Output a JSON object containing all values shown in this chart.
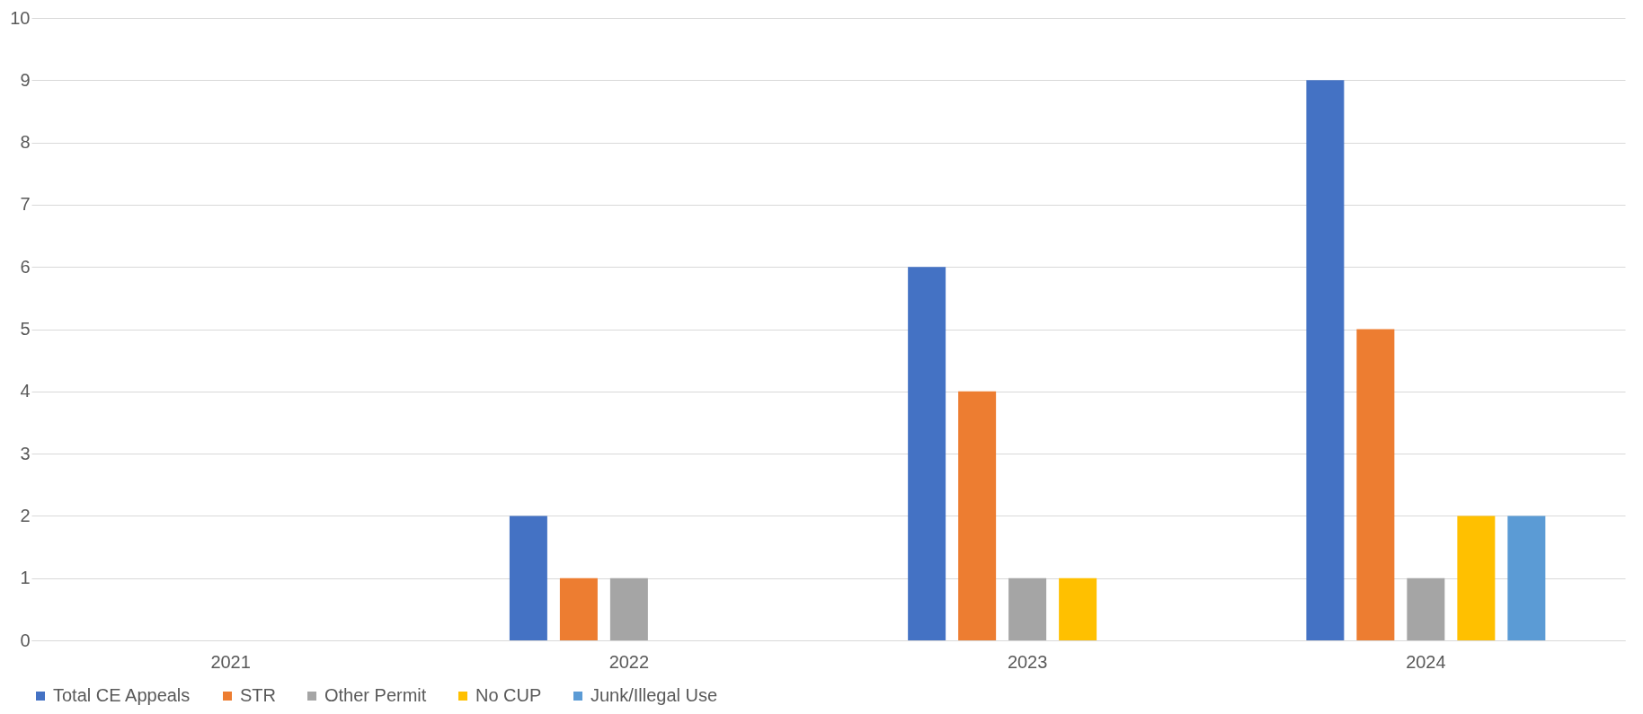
{
  "chart_data": {
    "type": "bar",
    "categories": [
      "2021",
      "2022",
      "2023",
      "2024"
    ],
    "series": [
      {
        "name": "Total CE Appeals",
        "color": "#4472c4",
        "values": [
          0,
          2,
          6,
          9
        ]
      },
      {
        "name": "STR",
        "color": "#ed7d31",
        "values": [
          0,
          1,
          4,
          5
        ]
      },
      {
        "name": "Other Permit",
        "color": "#a5a5a5",
        "values": [
          0,
          1,
          1,
          1
        ]
      },
      {
        "name": "No CUP",
        "color": "#ffc000",
        "values": [
          0,
          0,
          1,
          2
        ]
      },
      {
        "name": "Junk/Illegal Use",
        "color": "#5b9bd5",
        "values": [
          0,
          0,
          0,
          2
        ]
      }
    ],
    "ylim": [
      0,
      10
    ],
    "yticks": [
      0,
      1,
      2,
      3,
      4,
      5,
      6,
      7,
      8,
      9,
      10
    ],
    "grid": "y",
    "legend": "bottom"
  }
}
